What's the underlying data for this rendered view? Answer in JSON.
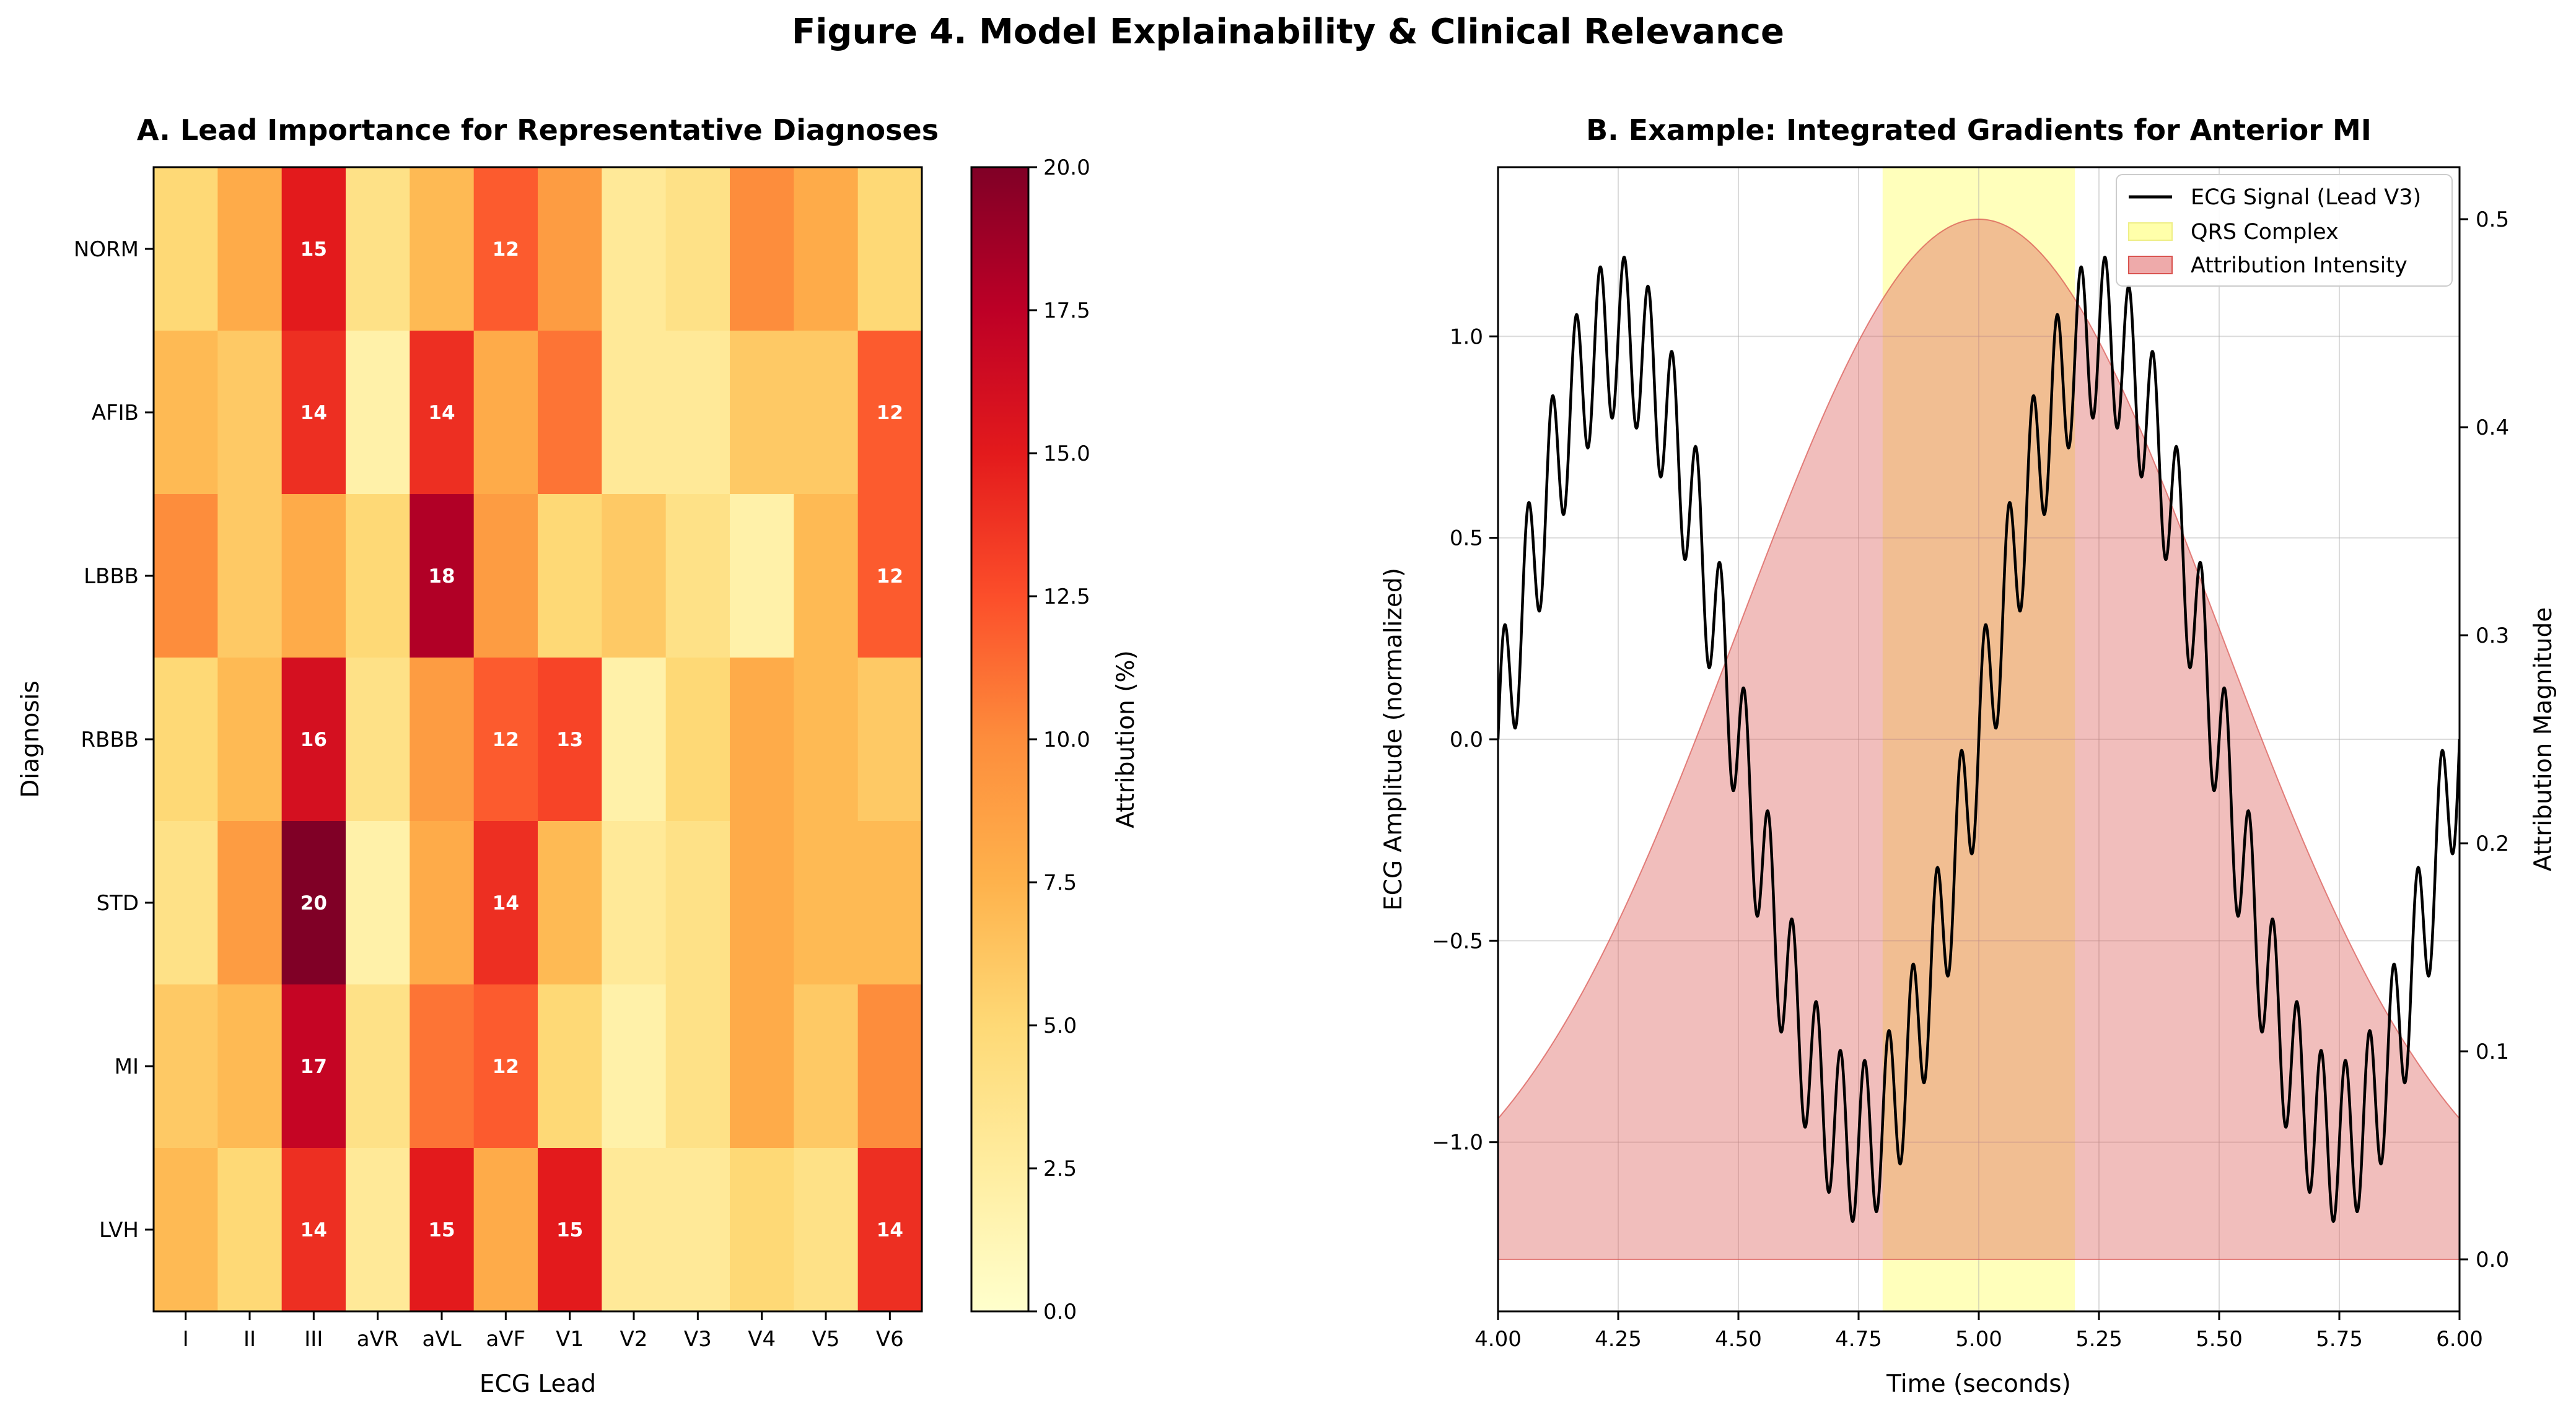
{
  "figure_title": "Figure 4. Model Explainability & Clinical Relevance",
  "chart_data": [
    {
      "type": "heatmap",
      "title": "A. Lead Importance for Representative Diagnoses",
      "xlabel": "ECG Lead",
      "ylabel": "Diagnosis",
      "x_categories": [
        "I",
        "II",
        "III",
        "aVR",
        "aVL",
        "aVF",
        "V1",
        "V2",
        "V3",
        "V4",
        "V5",
        "V6"
      ],
      "y_categories": [
        "NORM",
        "AFIB",
        "LBBB",
        "RBBB",
        "STD",
        "MI",
        "LVH"
      ],
      "values": [
        [
          5,
          8,
          15,
          4,
          7,
          12,
          9,
          3,
          4,
          10,
          8,
          5
        ],
        [
          7,
          6,
          14,
          2,
          14,
          8,
          11,
          3,
          3,
          6,
          6,
          12
        ],
        [
          10,
          6,
          8,
          5,
          18,
          9,
          5,
          6,
          4,
          2,
          7,
          12
        ],
        [
          5,
          7,
          16,
          4,
          9,
          12,
          13,
          2,
          5,
          8,
          7,
          6
        ],
        [
          4,
          9,
          20,
          2,
          8,
          14,
          7,
          3,
          4,
          8,
          7,
          7
        ],
        [
          6,
          7,
          17,
          4,
          11,
          12,
          5,
          2,
          4,
          8,
          6,
          10
        ],
        [
          7,
          5,
          14,
          3,
          15,
          8,
          15,
          3,
          3,
          5,
          4,
          14
        ]
      ],
      "annotate_threshold": 12,
      "colorbar": {
        "label": "Attribution (%)",
        "min": 0.0,
        "max": 20.0,
        "ticks": [
          "0.0",
          "2.5",
          "5.0",
          "7.5",
          "10.0",
          "12.5",
          "15.0",
          "17.5",
          "20.0"
        ],
        "colormap": [
          "#ffffcc",
          "#ffeda0",
          "#fed976",
          "#feb24c",
          "#fd8d3c",
          "#fc4e2a",
          "#e31a1c",
          "#bd0026",
          "#800026"
        ]
      }
    },
    {
      "type": "line",
      "title": "B. Example: Integrated Gradients for Anterior MI",
      "xlabel": "Time (seconds)",
      "ylabel": "ECG Amplitude (normalized)",
      "y2label": "Attribution Magnitude",
      "xlim": [
        4.0,
        6.0
      ],
      "ylim": [
        -1.42,
        1.42
      ],
      "y2lim": [
        -0.025,
        0.525
      ],
      "x_ticks": [
        "4.00",
        "4.25",
        "4.50",
        "4.75",
        "5.00",
        "5.25",
        "5.50",
        "5.75",
        "6.00"
      ],
      "y_ticks": [
        "-1.0",
        "-0.5",
        "0.0",
        "0.5",
        "1.0"
      ],
      "y2_ticks": [
        "0.0",
        "0.1",
        "0.2",
        "0.3",
        "0.4",
        "0.5"
      ],
      "grid": true,
      "legend_position": "top-right",
      "series": [
        {
          "name": "ECG Signal (Lead V3)",
          "kind": "line",
          "color": "#000000",
          "components": [
            {
              "amplitude": 1.0,
              "frequency_hz": 1.0
            },
            {
              "amplitude": 0.2,
              "frequency_hz": 20.0
            }
          ]
        },
        {
          "name": "QRS Complex",
          "kind": "span",
          "color": "#ffff99",
          "x_range": [
            4.8,
            5.2
          ]
        },
        {
          "name": "Attribution Intensity",
          "kind": "area",
          "color": "#d9534f",
          "axis": "y2",
          "peak_x": 5.0,
          "peak_value": 0.5,
          "sigma": 0.5
        }
      ]
    }
  ]
}
